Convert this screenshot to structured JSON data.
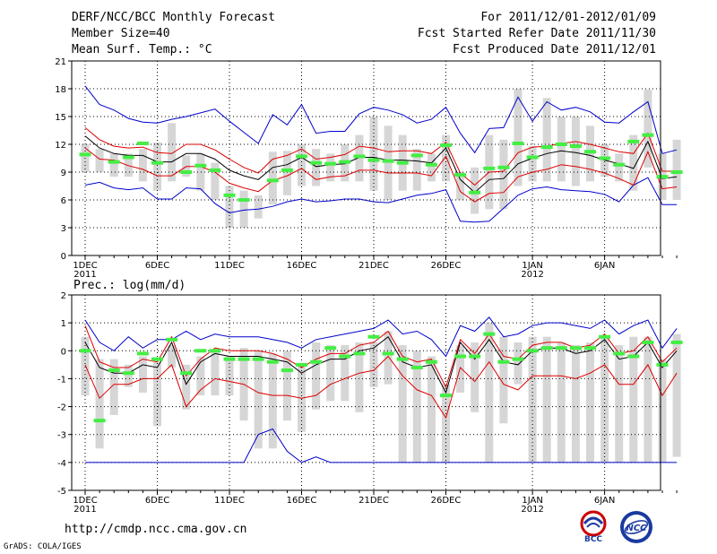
{
  "header": {
    "title": "DERF/NCC/BCC Monthly Forecast",
    "member": "Member Size=40",
    "variable1": "Mean Surf. Temp.: °C",
    "period": "For 2011/12/01-2012/01/09",
    "started": "Fcst Started Refer Date 2011/11/30",
    "produced": "Fcst Produced Date 2011/12/01"
  },
  "footer": {
    "url": "http://cmdp.ncc.cma.gov.cn",
    "credit": "GrADS: COLA/IGES",
    "logo_bcc": "BCC",
    "logo_ncc": "NCC"
  },
  "colors": {
    "box": "#d6d6d6",
    "median": "#000000",
    "band": "#dd0000",
    "extreme": "#0000cc",
    "obs": "#44ee44",
    "grid": "#000000"
  },
  "chart_data": [
    {
      "type": "box-line",
      "title": "Mean Surf. Temp.: °C",
      "x_tick_labels": [
        "1DEC",
        "6DEC",
        "11DEC",
        "16DEC",
        "21DEC",
        "26DEC",
        "1JAN",
        "6JAN"
      ],
      "x_tick_days": [
        0,
        5,
        10,
        15,
        20,
        25,
        31,
        36
      ],
      "x_sub_labels": [
        {
          "day": 0,
          "text": "2011"
        },
        {
          "day": 31,
          "text": "2012"
        }
      ],
      "ylim": [
        0,
        21
      ],
      "yticks": [
        0,
        3,
        6,
        9,
        12,
        15,
        18,
        21
      ],
      "grid": true,
      "series": [
        {
          "name": "max",
          "values": [
            18.3,
            16.3,
            15.7,
            14.8,
            14.4,
            14.3,
            14.7,
            15.0,
            15.4,
            15.8,
            14.5,
            13.3,
            12.1,
            15.2,
            14.1,
            16.3,
            13.2,
            13.4,
            13.4,
            15.3,
            16.0,
            15.7,
            15.2,
            14.3,
            14.7,
            16.0,
            13.2,
            11.1,
            13.7,
            13.8,
            17.1,
            14.5,
            16.6,
            15.7,
            16.0,
            15.5,
            14.4,
            14.3,
            15.5,
            16.6,
            11.0,
            11.4
          ]
        },
        {
          "name": "upper",
          "values": [
            13.8,
            12.5,
            11.8,
            11.6,
            11.7,
            11.1,
            11.0,
            12.0,
            12.0,
            11.4,
            10.4,
            9.5,
            8.9,
            10.4,
            10.8,
            11.5,
            10.4,
            10.6,
            10.9,
            11.8,
            11.6,
            11.2,
            11.3,
            11.3,
            11.0,
            12.2,
            8.9,
            7.6,
            9.0,
            9.1,
            11.1,
            11.7,
            11.8,
            12.1,
            12.3,
            12.0,
            11.6,
            11.2,
            11.0,
            13.2,
            9.1,
            9.1
          ]
        },
        {
          "name": "median",
          "values": [
            12.9,
            11.6,
            11.0,
            10.8,
            10.8,
            10.1,
            10.1,
            11.0,
            11.0,
            10.4,
            9.2,
            8.6,
            8.2,
            9.5,
            9.8,
            10.6,
            9.6,
            9.8,
            9.9,
            10.6,
            10.6,
            10.3,
            10.3,
            10.2,
            10.0,
            11.6,
            8.2,
            6.8,
            8.2,
            8.3,
            9.9,
            10.5,
            11.0,
            11.3,
            11.1,
            10.8,
            10.3,
            9.9,
            9.4,
            12.3,
            8.3,
            8.5
          ]
        },
        {
          "name": "lower",
          "values": [
            11.6,
            10.4,
            10.3,
            9.7,
            9.3,
            8.6,
            8.6,
            9.6,
            9.6,
            9.0,
            7.8,
            7.3,
            6.9,
            8.1,
            8.6,
            9.4,
            8.2,
            8.5,
            8.6,
            9.2,
            9.2,
            8.9,
            8.9,
            8.9,
            8.6,
            10.7,
            6.9,
            5.8,
            6.7,
            6.8,
            8.5,
            9.0,
            9.3,
            9.8,
            9.6,
            9.3,
            8.9,
            8.3,
            7.6,
            11.2,
            7.2,
            7.4
          ]
        },
        {
          "name": "min",
          "values": [
            7.6,
            7.9,
            7.3,
            7.1,
            7.3,
            6.1,
            6.1,
            7.3,
            7.2,
            5.6,
            4.6,
            4.9,
            5.0,
            5.3,
            5.8,
            6.1,
            5.8,
            5.9,
            6.1,
            6.1,
            5.8,
            5.7,
            6.1,
            6.5,
            6.7,
            7.1,
            3.7,
            3.6,
            3.7,
            5.1,
            6.5,
            7.2,
            7.4,
            7.1,
            7.0,
            6.9,
            6.6,
            5.8,
            7.6,
            8.4,
            5.5,
            5.5
          ]
        },
        {
          "name": "box_high",
          "values": [
            12.0,
            11.5,
            11.0,
            11.0,
            11.5,
            12.2,
            14.3,
            10.8,
            11.0,
            10.0,
            7.5,
            7.0,
            6.5,
            11.2,
            11.3,
            12.0,
            11.5,
            11.0,
            12.0,
            13.0,
            15.0,
            14.0,
            13.0,
            11.5,
            11.0,
            13.0,
            9.0,
            9.5,
            13.0,
            12.5,
            18.0,
            11.8,
            17.0,
            15.0,
            15.0,
            14.0,
            12.0,
            11.0,
            13.0,
            17.9,
            11.0,
            12.5
          ]
        },
        {
          "name": "box_low",
          "values": [
            9.0,
            9.0,
            8.5,
            8.5,
            8.0,
            7.0,
            8.0,
            8.5,
            7.0,
            6.0,
            3.0,
            3.0,
            4.0,
            5.5,
            6.5,
            7.5,
            7.5,
            8.0,
            8.0,
            8.0,
            7.0,
            6.0,
            7.0,
            7.0,
            8.0,
            8.0,
            6.0,
            4.5,
            5.0,
            5.0,
            7.5,
            8.0,
            8.0,
            8.0,
            7.5,
            8.0,
            8.5,
            8.0,
            7.0,
            9.5,
            6.0,
            6.0
          ]
        },
        {
          "name": "observed",
          "values": [
            10.9,
            null,
            10.1,
            10.6,
            12.1,
            10.0,
            null,
            9.0,
            9.7,
            9.2,
            6.5,
            6.0,
            null,
            8.1,
            9.2,
            10.7,
            10.0,
            9.9,
            10.1,
            10.7,
            10.3,
            10.2,
            10.0,
            10.8,
            9.8,
            11.9,
            8.7,
            6.8,
            9.4,
            9.5,
            12.1,
            10.6,
            11.7,
            12.0,
            11.8,
            11.2,
            10.5,
            9.8,
            12.3,
            13.0,
            8.5,
            9.0
          ]
        }
      ]
    },
    {
      "type": "box-line",
      "title": "Prec.: log(mm/d)",
      "x_tick_labels": [
        "1DEC",
        "6DEC",
        "11DEC",
        "16DEC",
        "21DEC",
        "26DEC",
        "1JAN",
        "6JAN"
      ],
      "x_tick_days": [
        0,
        5,
        10,
        15,
        20,
        25,
        31,
        36
      ],
      "x_sub_labels": [
        {
          "day": 0,
          "text": "2011"
        },
        {
          "day": 31,
          "text": "2012"
        }
      ],
      "ylim": [
        -5,
        2
      ],
      "yticks": [
        -5,
        -4,
        -3,
        -2,
        -1,
        0,
        1,
        2
      ],
      "grid": true,
      "series": [
        {
          "name": "max",
          "values": [
            1.1,
            0.3,
            0.0,
            0.5,
            0.1,
            0.4,
            0.4,
            0.7,
            0.4,
            0.6,
            0.5,
            0.5,
            0.5,
            0.4,
            0.3,
            0.1,
            0.4,
            0.5,
            0.6,
            0.7,
            0.8,
            1.1,
            0.6,
            0.7,
            0.4,
            -0.2,
            0.9,
            0.7,
            1.2,
            0.5,
            0.6,
            0.9,
            1.0,
            1.0,
            0.9,
            0.8,
            1.1,
            0.6,
            0.9,
            1.1,
            0.1,
            0.8
          ]
        },
        {
          "name": "upper",
          "values": [
            0.9,
            -0.4,
            -0.6,
            -0.6,
            -0.3,
            -0.4,
            0.5,
            -0.9,
            -0.3,
            0.1,
            0.0,
            0.0,
            0.0,
            -0.1,
            -0.3,
            -0.6,
            -0.3,
            -0.1,
            -0.1,
            0.2,
            0.3,
            0.7,
            -0.2,
            -0.4,
            -0.3,
            -1.3,
            0.4,
            -0.1,
            0.6,
            -0.2,
            -0.3,
            0.2,
            0.3,
            0.3,
            0.1,
            0.2,
            0.6,
            -0.1,
            0.0,
            0.5,
            -0.4,
            0.1
          ]
        },
        {
          "name": "median",
          "values": [
            0.3,
            -0.6,
            -0.8,
            -0.8,
            -0.5,
            -0.6,
            0.3,
            -1.2,
            -0.4,
            -0.1,
            -0.2,
            -0.2,
            -0.2,
            -0.3,
            -0.4,
            -0.8,
            -0.5,
            -0.3,
            -0.3,
            0.0,
            0.1,
            0.5,
            -0.4,
            -0.6,
            -0.5,
            -1.5,
            0.3,
            -0.3,
            0.4,
            -0.4,
            -0.5,
            0.0,
            0.1,
            0.1,
            -0.1,
            0.0,
            0.4,
            -0.3,
            -0.2,
            0.3,
            -0.6,
            0.0
          ]
        },
        {
          "name": "lower",
          "values": [
            -0.5,
            -1.7,
            -1.2,
            -1.2,
            -1.0,
            -1.0,
            -0.5,
            -2.0,
            -1.4,
            -1.0,
            -1.1,
            -1.2,
            -1.5,
            -1.6,
            -1.6,
            -1.7,
            -1.6,
            -1.2,
            -1.0,
            -0.8,
            -0.7,
            -0.2,
            -0.9,
            -1.4,
            -1.6,
            -2.4,
            -0.6,
            -1.1,
            -0.4,
            -1.2,
            -1.4,
            -0.9,
            -0.9,
            -0.9,
            -1.0,
            -0.8,
            -0.5,
            -1.2,
            -1.2,
            -0.5,
            -1.6,
            -0.8
          ]
        },
        {
          "name": "min",
          "values": [
            -4.0,
            -4.0,
            -4.0,
            -4.0,
            -4.0,
            -4.0,
            -4.0,
            -4.0,
            -4.0,
            -4.0,
            -4.0,
            -4.0,
            -3.0,
            -2.8,
            -3.6,
            -4.0,
            -3.8,
            -4.0,
            -4.0,
            -4.0,
            -4.0,
            -4.0,
            -4.0,
            -4.0,
            -4.0,
            -4.0,
            -4.0,
            -4.0,
            -4.0,
            -4.0,
            -4.0,
            -4.0,
            -4.0,
            -4.0,
            -4.0,
            -4.0,
            -4.0,
            -4.0,
            -4.0,
            -4.0,
            -4.0,
            -4.0
          ]
        },
        {
          "name": "box_high",
          "values": [
            0.5,
            -0.3,
            -0.3,
            -0.5,
            -0.2,
            -0.4,
            0.2,
            -0.5,
            -0.2,
            0.0,
            -0.2,
            0.1,
            0.0,
            -0.1,
            0.0,
            -0.5,
            0.3,
            0.2,
            0.2,
            0.3,
            0.3,
            0.7,
            0.2,
            0.0,
            -0.2,
            -1.2,
            0.2,
            0.3,
            1.0,
            0.5,
            0.3,
            0.5,
            0.5,
            0.3,
            0.2,
            0.3,
            0.5,
            0.2,
            0.5,
            0.5,
            -0.3,
            0.6
          ]
        },
        {
          "name": "box_low",
          "values": [
            -1.6,
            -3.5,
            -2.3,
            -1.3,
            -1.5,
            -2.7,
            -0.6,
            -2.1,
            -1.6,
            -1.6,
            -1.6,
            -2.5,
            -3.5,
            -3.5,
            -2.5,
            -2.9,
            -2.1,
            -1.8,
            -1.8,
            -2.2,
            -1.3,
            -1.2,
            -4.0,
            -4.0,
            -4.0,
            -4.0,
            -1.5,
            -2.2,
            -4.0,
            -2.6,
            -1.2,
            -4.0,
            -4.0,
            -4.0,
            -4.0,
            -4.0,
            -4.0,
            -4.0,
            -4.0,
            -4.0,
            -4.0,
            -3.8
          ]
        },
        {
          "name": "observed",
          "values": [
            0.0,
            -2.5,
            -0.7,
            -0.8,
            -0.1,
            -0.3,
            0.4,
            -0.8,
            0.0,
            0.0,
            -0.3,
            -0.3,
            -0.3,
            -0.4,
            -0.7,
            -0.5,
            -0.4,
            0.1,
            -0.2,
            -0.1,
            0.5,
            -0.1,
            -0.3,
            -0.6,
            -0.4,
            -1.6,
            -0.2,
            -0.2,
            0.6,
            -0.4,
            -0.3,
            0.0,
            0.1,
            0.1,
            0.1,
            0.1,
            0.5,
            -0.1,
            -0.2,
            0.3,
            -0.5,
            0.3
          ]
        }
      ]
    }
  ]
}
